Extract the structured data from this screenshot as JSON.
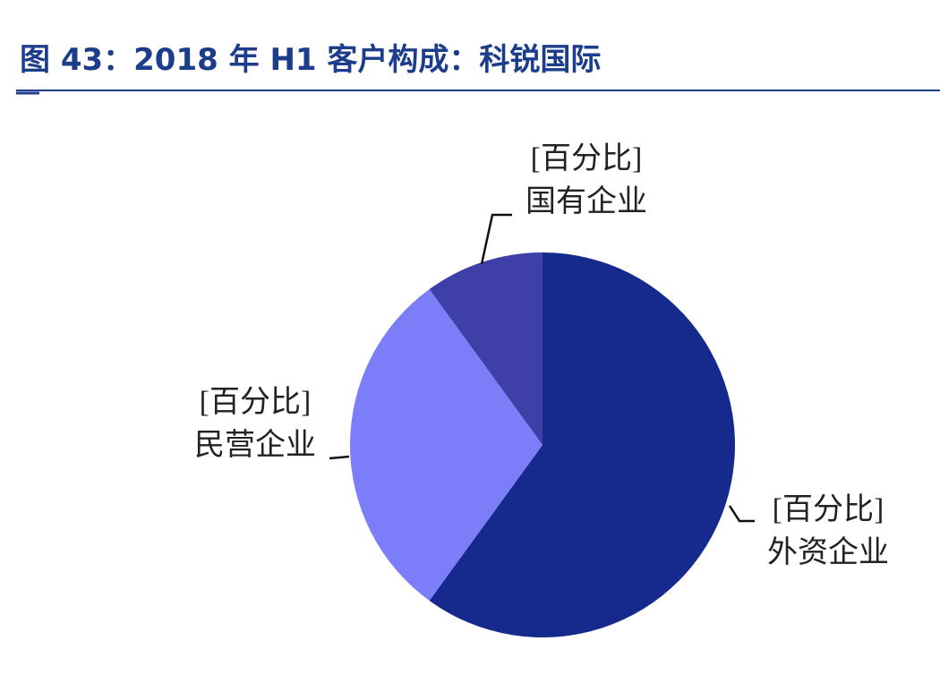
{
  "chart_data": {
    "type": "pie",
    "title": "图 43：2018 年 H1 客户构成：科锐国际",
    "categories": [
      "外资企业",
      "民营企业",
      "国有企业"
    ],
    "values": [
      60,
      30,
      10
    ],
    "value_labels": [
      "[百分比]",
      "[百分比]",
      "[百分比]"
    ],
    "colors": [
      "#152a8c",
      "#7b7ef8",
      "#3f3fa8"
    ]
  }
}
